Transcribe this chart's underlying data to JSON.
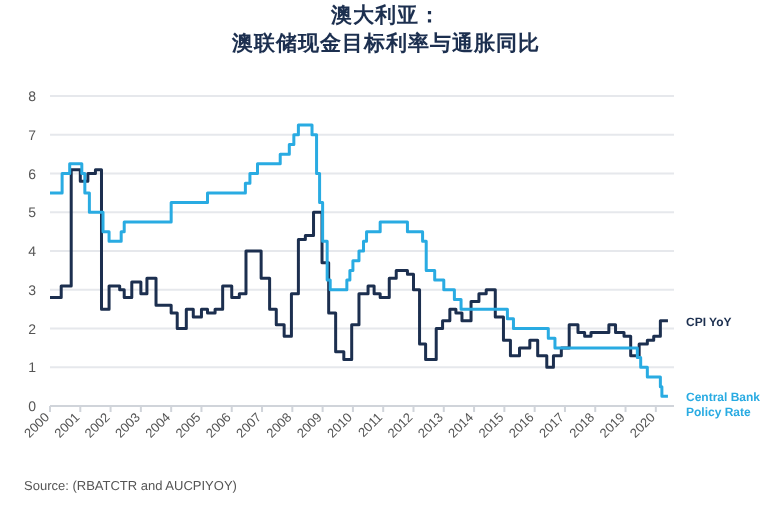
{
  "chart_data": {
    "type": "step",
    "title": "澳大利亚：",
    "subtitle": "澳联储现金目标利率与通胀同比",
    "xlim": [
      2000,
      2020.6
    ],
    "xticks": [
      2000,
      2001,
      2002,
      2003,
      2004,
      2005,
      2006,
      2007,
      2008,
      2009,
      2010,
      2011,
      2012,
      2013,
      2014,
      2015,
      2016,
      2017,
      2018,
      2019,
      2020
    ],
    "ylim": [
      0,
      8
    ],
    "yticks": [
      0,
      1,
      2,
      3,
      4,
      5,
      6,
      7,
      8
    ],
    "grid": "y",
    "annotations": [
      "Source: (RBATCTR and AUCPIYOY)"
    ],
    "series": [
      {
        "name": "CPI YoY",
        "color": "#1c2f4f",
        "x": [
          2000,
          2000.37,
          2000.45,
          2000.7,
          2001.0,
          2001.25,
          2001.5,
          2001.7,
          2001.95,
          2002.3,
          2002.45,
          2002.7,
          2003.0,
          2003.2,
          2003.5,
          2004.0,
          2004.2,
          2004.5,
          2004.73,
          2005.0,
          2005.2,
          2005.45,
          2005.7,
          2006.0,
          2006.25,
          2006.47,
          2006.97,
          2007.25,
          2007.47,
          2007.73,
          2007.97,
          2008.2,
          2008.43,
          2008.7,
          2008.98,
          2009.2,
          2009.43,
          2009.7,
          2009.96,
          2010.2,
          2010.5,
          2010.7,
          2010.9,
          2011.2,
          2011.43,
          2011.8,
          2012.0,
          2012.2,
          2012.4,
          2012.75,
          2012.96,
          2013.2,
          2013.4,
          2013.6,
          2013.9,
          2014.16,
          2014.4,
          2014.7,
          2014.97,
          2015.2,
          2015.5,
          2015.84,
          2016.1,
          2016.4,
          2016.62,
          2016.88,
          2017.14,
          2017.43,
          2017.65,
          2017.86,
          2018.45,
          2018.67,
          2018.95,
          2019.17,
          2019.45,
          2019.72,
          2019.93,
          2020.15,
          2020.4
        ],
        "values": [
          2.8,
          3.1,
          3.1,
          6.1,
          5.8,
          6.0,
          6.1,
          2.5,
          3.1,
          3.0,
          2.8,
          3.2,
          2.9,
          3.3,
          2.6,
          2.4,
          2.0,
          2.5,
          2.3,
          2.5,
          2.4,
          2.5,
          3.1,
          2.8,
          2.9,
          4.0,
          3.3,
          2.5,
          2.1,
          1.8,
          2.9,
          4.3,
          4.4,
          5.0,
          3.7,
          2.4,
          1.4,
          1.2,
          2.1,
          2.9,
          3.1,
          2.9,
          2.8,
          3.3,
          3.5,
          3.4,
          3.0,
          1.6,
          1.2,
          2.0,
          2.2,
          2.5,
          2.4,
          2.2,
          2.7,
          2.9,
          3.0,
          2.3,
          1.7,
          1.3,
          1.5,
          1.7,
          1.3,
          1.0,
          1.3,
          1.5,
          2.1,
          1.9,
          1.8,
          1.9,
          2.1,
          1.9,
          1.8,
          1.3,
          1.6,
          1.7,
          1.8,
          2.2,
          2.2
        ]
      },
      {
        "name": "Central Bank Policy Rate",
        "color": "#29abe2",
        "x": [
          2000,
          2000.4,
          2000.65,
          2001.05,
          2001.15,
          2001.3,
          2001.75,
          2001.95,
          2002.35,
          2002.45,
          2004.0,
          2005.2,
          2006.45,
          2006.6,
          2006.85,
          2007.6,
          2007.9,
          2008.05,
          2008.2,
          2008.65,
          2008.8,
          2008.9,
          2009.0,
          2009.15,
          2009.25,
          2009.8,
          2009.9,
          2010.0,
          2010.2,
          2010.35,
          2010.45,
          2010.9,
          2011.8,
          2012.3,
          2012.42,
          2012.7,
          2013.0,
          2013.35,
          2013.57,
          2015.1,
          2015.3,
          2016.45,
          2016.67,
          2019.39,
          2019.5,
          2019.72,
          2020.15,
          2020.2,
          2020.4
        ],
        "values": [
          5.5,
          6.0,
          6.25,
          6.0,
          5.5,
          5.0,
          4.5,
          4.25,
          4.5,
          4.75,
          5.25,
          5.5,
          5.75,
          6.0,
          6.25,
          6.5,
          6.75,
          7.0,
          7.25,
          7.0,
          6.0,
          5.25,
          4.25,
          3.25,
          3.0,
          3.25,
          3.5,
          3.75,
          4.0,
          4.25,
          4.5,
          4.75,
          4.5,
          4.25,
          3.5,
          3.25,
          3.0,
          2.75,
          2.5,
          2.25,
          2.0,
          1.75,
          1.5,
          1.25,
          1.0,
          0.75,
          0.5,
          0.25,
          0.25
        ]
      }
    ]
  }
}
